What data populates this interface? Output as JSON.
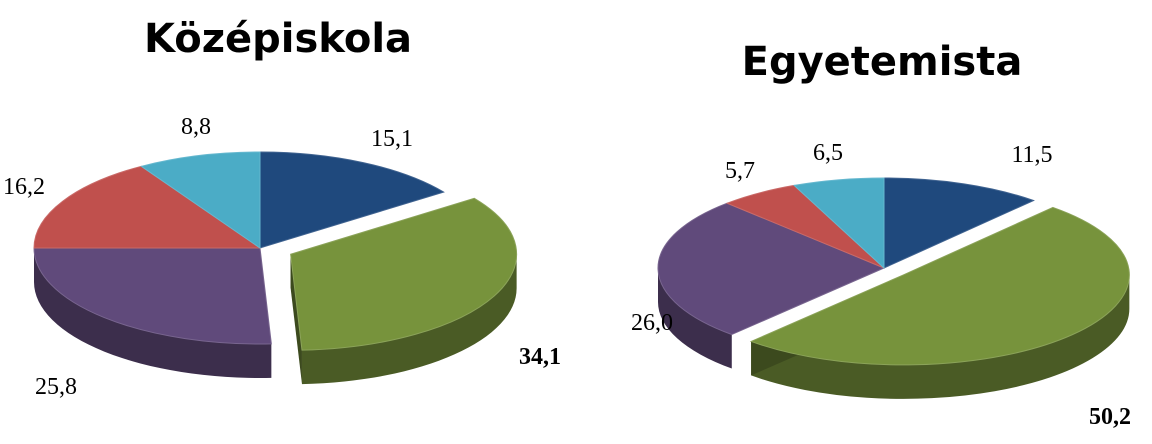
{
  "chart_data": [
    {
      "type": "pie",
      "style": "3d-exploded",
      "title": "Középiskola",
      "slices": [
        {
          "label": "15,1",
          "value": 15.1,
          "color": "#1f497d",
          "exploded": false,
          "bold": false
        },
        {
          "label": "34,1",
          "value": 34.1,
          "color": "#77933c",
          "exploded": true,
          "bold": true
        },
        {
          "label": "25,8",
          "value": 25.8,
          "color": "#604a7b",
          "exploded": false,
          "bold": false
        },
        {
          "label": "16,2",
          "value": 16.2,
          "color": "#c0504d",
          "exploded": false,
          "bold": false
        },
        {
          "label": "8,8",
          "value": 8.8,
          "color": "#4bacc6",
          "exploded": false,
          "bold": false
        }
      ]
    },
    {
      "type": "pie",
      "style": "3d-exploded",
      "title": "Egyetemista",
      "slices": [
        {
          "label": "11,5",
          "value": 11.5,
          "color": "#1f497d",
          "exploded": false,
          "bold": false
        },
        {
          "label": "50,2",
          "value": 50.2,
          "color": "#77933c",
          "exploded": true,
          "bold": true
        },
        {
          "label": "26,0",
          "value": 26.0,
          "color": "#604a7b",
          "exploded": false,
          "bold": false
        },
        {
          "label": "5,7",
          "value": 5.7,
          "color": "#c0504d",
          "exploded": false,
          "bold": false
        },
        {
          "label": "6,5",
          "value": 6.5,
          "color": "#4bacc6",
          "exploded": false,
          "bold": false
        }
      ]
    }
  ]
}
